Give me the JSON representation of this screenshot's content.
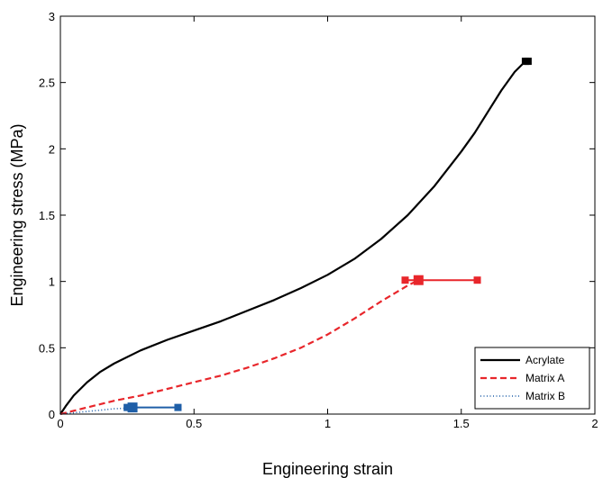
{
  "chart_data": {
    "type": "line",
    "xlabel": "Engineering strain",
    "ylabel": "Engineering stress (MPa)",
    "xlim": [
      0,
      2
    ],
    "ylim": [
      0,
      3
    ],
    "x_ticks": [
      {
        "value": 0,
        "label": "0"
      },
      {
        "value": 0.5,
        "label": "0.5"
      },
      {
        "value": 1,
        "label": "1"
      },
      {
        "value": 1.5,
        "label": "1.5"
      },
      {
        "value": 2,
        "label": "2"
      }
    ],
    "y_ticks": [
      {
        "value": 0,
        "label": "0"
      },
      {
        "value": 0.5,
        "label": "0.5"
      },
      {
        "value": 1,
        "label": "1"
      },
      {
        "value": 1.5,
        "label": "1.5"
      },
      {
        "value": 2,
        "label": "2"
      },
      {
        "value": 2.5,
        "label": "2.5"
      },
      {
        "value": 3,
        "label": "3"
      }
    ],
    "grid": false,
    "legend_position": "bottom-right",
    "series": [
      {
        "name": "Acrylate",
        "color": "#000000",
        "style": "solid",
        "x": [
          0,
          0.02,
          0.05,
          0.1,
          0.15,
          0.2,
          0.3,
          0.4,
          0.5,
          0.6,
          0.7,
          0.8,
          0.9,
          1.0,
          1.1,
          1.2,
          1.3,
          1.4,
          1.5,
          1.55,
          1.6,
          1.65,
          1.7,
          1.73,
          1.75
        ],
        "y": [
          0,
          0.06,
          0.14,
          0.24,
          0.32,
          0.38,
          0.48,
          0.56,
          0.63,
          0.7,
          0.78,
          0.86,
          0.95,
          1.05,
          1.17,
          1.32,
          1.5,
          1.72,
          1.98,
          2.12,
          2.28,
          2.44,
          2.58,
          2.64,
          2.66
        ],
        "failure_range": {
          "x": [
            1.74,
            1.75
          ],
          "y": 2.66
        }
      },
      {
        "name": "Matrix A",
        "color": "#e8262b",
        "style": "dashed",
        "x": [
          0,
          0.1,
          0.2,
          0.3,
          0.4,
          0.5,
          0.6,
          0.7,
          0.8,
          0.9,
          1.0,
          1.1,
          1.2,
          1.3,
          1.34
        ],
        "y": [
          0,
          0.05,
          0.1,
          0.14,
          0.19,
          0.24,
          0.29,
          0.35,
          0.42,
          0.5,
          0.6,
          0.72,
          0.85,
          0.97,
          1.01
        ],
        "failure_range": {
          "x": [
            1.29,
            1.34,
            1.56
          ],
          "y": 1.01
        }
      },
      {
        "name": "Matrix B",
        "color": "#1f5fa8",
        "style": "dotted",
        "x": [
          0,
          0.05,
          0.1,
          0.15,
          0.2,
          0.25,
          0.27
        ],
        "y": [
          0,
          0.01,
          0.02,
          0.03,
          0.04,
          0.045,
          0.05
        ],
        "failure_range": {
          "x": [
            0.25,
            0.27,
            0.44
          ],
          "y": 0.05
        }
      }
    ]
  }
}
